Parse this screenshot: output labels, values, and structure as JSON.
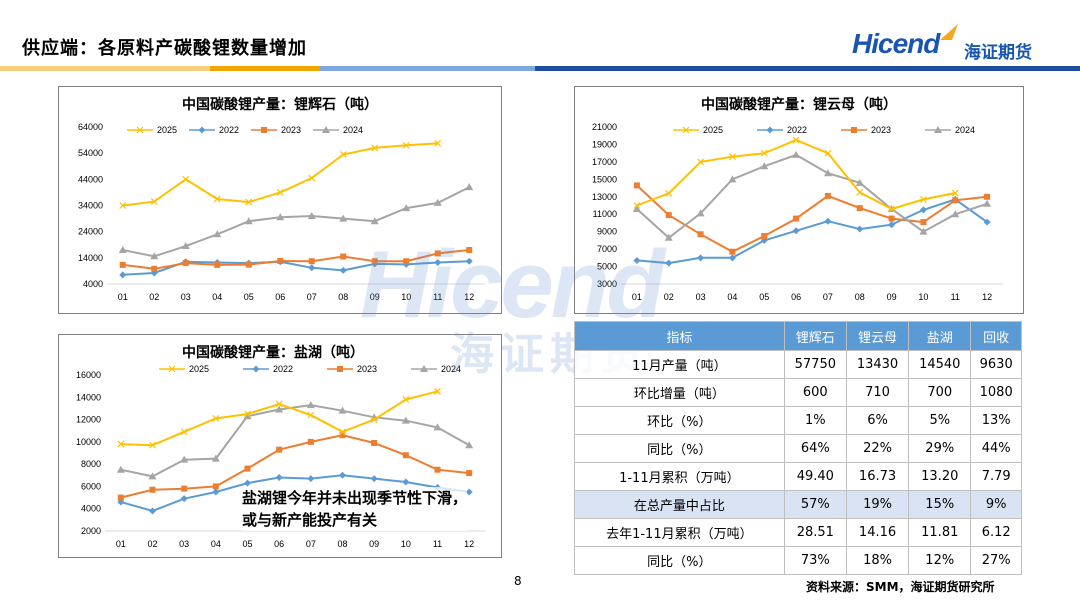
{
  "header": {
    "title": "供应端：各原料产碳酸锂数量增加",
    "logo_text": "Hicend",
    "logo_cn": "海证期货"
  },
  "colors": {
    "y2025": "#ffc000",
    "y2022": "#5b9bd5",
    "y2023": "#ed7d31",
    "y2024": "#a5a5a5",
    "table_header": "#5b9bd5",
    "table_highlight": "#dae3f3"
  },
  "chart_data": [
    {
      "type": "line",
      "title": "中国碳酸锂产量：锂辉石（吨）",
      "categories": [
        "01",
        "02",
        "03",
        "04",
        "05",
        "06",
        "07",
        "08",
        "09",
        "10",
        "11",
        "12"
      ],
      "yticks": [
        "4000",
        "14000",
        "24000",
        "34000",
        "44000",
        "54000",
        "64000"
      ],
      "ylim": [
        4000,
        64000
      ],
      "series": [
        {
          "name": "2025",
          "marker": "x",
          "values": [
            34000,
            35500,
            44000,
            36500,
            35300,
            39000,
            44500,
            53500,
            56000,
            57000,
            57750,
            null
          ]
        },
        {
          "name": "2022",
          "marker": "diamond",
          "values": [
            7500,
            8200,
            12500,
            12200,
            12000,
            12500,
            10200,
            9200,
            11700,
            11500,
            12200,
            12700
          ]
        },
        {
          "name": "2023",
          "marker": "square",
          "values": [
            11300,
            9800,
            12000,
            11300,
            11400,
            12800,
            12700,
            14500,
            12700,
            12700,
            15700,
            17000
          ]
        },
        {
          "name": "2024",
          "marker": "triangle",
          "values": [
            17000,
            14600,
            18500,
            23000,
            28000,
            29500,
            30000,
            29000,
            28000,
            33000,
            35000,
            41000
          ]
        }
      ]
    },
    {
      "type": "line",
      "title": "中国碳酸锂产量：锂云母（吨）",
      "categories": [
        "01",
        "02",
        "03",
        "04",
        "05",
        "06",
        "07",
        "08",
        "09",
        "10",
        "11",
        "12"
      ],
      "yticks": [
        "3000",
        "5000",
        "7000",
        "9000",
        "11000",
        "13000",
        "15000",
        "17000",
        "19000",
        "21000"
      ],
      "ylim": [
        3000,
        21000
      ],
      "series": [
        {
          "name": "2025",
          "marker": "x",
          "values": [
            12000,
            13400,
            17000,
            17600,
            18000,
            19500,
            18000,
            13500,
            11600,
            12700,
            13430,
            null
          ]
        },
        {
          "name": "2022",
          "marker": "diamond",
          "values": [
            5700,
            5400,
            6000,
            6000,
            8000,
            9100,
            10200,
            9300,
            9800,
            11500,
            12700,
            10100
          ]
        },
        {
          "name": "2023",
          "marker": "square",
          "values": [
            14300,
            10900,
            8700,
            6700,
            8500,
            10500,
            13100,
            11700,
            10500,
            10100,
            12600,
            13000
          ]
        },
        {
          "name": "2024",
          "marker": "triangle",
          "values": [
            11600,
            8300,
            11100,
            15000,
            16500,
            17800,
            15700,
            14600,
            11600,
            9000,
            11000,
            12200
          ]
        }
      ]
    },
    {
      "type": "line",
      "title": "中国碳酸锂产量：盐湖（吨）",
      "categories": [
        "01",
        "02",
        "03",
        "04",
        "05",
        "06",
        "07",
        "08",
        "09",
        "10",
        "11",
        "12"
      ],
      "yticks": [
        "2000",
        "4000",
        "6000",
        "8000",
        "10000",
        "12000",
        "14000",
        "16000"
      ],
      "ylim": [
        2000,
        16000
      ],
      "series": [
        {
          "name": "2025",
          "marker": "x",
          "values": [
            9800,
            9700,
            10900,
            12100,
            12500,
            13400,
            12400,
            10900,
            12000,
            13800,
            14540,
            null
          ]
        },
        {
          "name": "2022",
          "marker": "diamond",
          "values": [
            4600,
            3800,
            4900,
            5500,
            6300,
            6800,
            6700,
            7000,
            6700,
            6400,
            5900,
            5500
          ]
        },
        {
          "name": "2023",
          "marker": "square",
          "values": [
            5000,
            5700,
            5800,
            6000,
            7600,
            9300,
            10000,
            10600,
            9900,
            8800,
            7500,
            7200
          ]
        },
        {
          "name": "2024",
          "marker": "triangle",
          "values": [
            7500,
            6900,
            8400,
            8500,
            12300,
            12900,
            13300,
            12800,
            12200,
            11900,
            11300,
            9700
          ]
        }
      ]
    },
    {
      "type": "table",
      "columns": [
        "指标",
        "锂辉石",
        "锂云母",
        "盐湖",
        "回收"
      ],
      "rows": [
        [
          "11月产量（吨）",
          "57750",
          "13430",
          "14540",
          "9630"
        ],
        [
          "环比增量（吨）",
          "600",
          "710",
          "700",
          "1080"
        ],
        [
          "环比（%）",
          "1%",
          "6%",
          "5%",
          "13%"
        ],
        [
          "同比（%）",
          "64%",
          "22%",
          "29%",
          "44%"
        ],
        [
          "1-11月累积（万吨）",
          "49.40",
          "16.73",
          "13.20",
          "7.79"
        ],
        [
          "在总产量中占比",
          "57%",
          "19%",
          "15%",
          "9%"
        ],
        [
          "去年1-11月累积（万吨）",
          "28.51",
          "14.16",
          "11.81",
          "6.12"
        ],
        [
          "同比（%）",
          "73%",
          "18%",
          "12%",
          "27%"
        ]
      ]
    }
  ],
  "annotation": {
    "line1": "盐湖锂今年并未出现季节性下滑，",
    "line2": "或与新产能投产有关"
  },
  "footer": {
    "page_number": "8",
    "source": "资料来源：SMM，海证期货研究所"
  }
}
